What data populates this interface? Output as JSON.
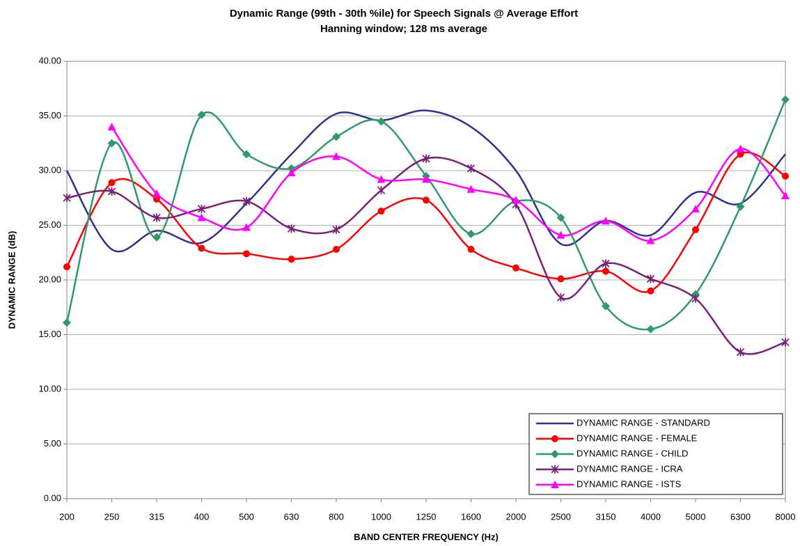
{
  "chart_data": {
    "type": "line",
    "title": "Dynamic Range (99th - 30th %ile) for Speech Signals @ Average Effort",
    "subtitle": "Hanning window; 128 ms average",
    "x_label": "BAND CENTER FREQUENCY (Hz)",
    "y_label": "DYNAMIC RANGE (dB)",
    "categories": [
      "200",
      "250",
      "315",
      "400",
      "500",
      "630",
      "800",
      "1000",
      "1250",
      "1600",
      "2000",
      "2500",
      "3150",
      "4000",
      "5000",
      "6300",
      "8000"
    ],
    "ylim": [
      0,
      40
    ],
    "yticks": [
      {
        "value": 0,
        "label": "0.00"
      },
      {
        "value": 5,
        "label": "5.00"
      },
      {
        "value": 10,
        "label": "10.00"
      },
      {
        "value": 15,
        "label": "15.00"
      },
      {
        "value": 20,
        "label": "20.00"
      },
      {
        "value": 25,
        "label": "25.00"
      },
      {
        "value": 30,
        "label": "30.00"
      },
      {
        "value": 35,
        "label": "35.00"
      },
      {
        "value": 40,
        "label": "40.00"
      }
    ],
    "grid": true,
    "smooth": true,
    "legend": "lower right",
    "series": [
      {
        "name": "DYNAMIC RANGE - STANDARD",
        "color": "#2e3192",
        "values": [
          30.0,
          22.8,
          24.5,
          23.4,
          27.0,
          31.5,
          35.2,
          34.6,
          35.5,
          34.0,
          30.0,
          23.3,
          25.4,
          24.1,
          28.0,
          27.0,
          31.5
        ]
      },
      {
        "name": "DYNAMIC RANGE - FEMALE",
        "color": "#ff0000",
        "marker": "circle",
        "values": [
          21.2,
          28.9,
          27.4,
          22.9,
          22.4,
          21.9,
          22.8,
          26.3,
          27.3,
          22.8,
          21.1,
          20.1,
          20.8,
          19.0,
          24.6,
          31.5,
          29.5
        ]
      },
      {
        "name": "DYNAMIC RANGE - CHILD",
        "color": "#2e9a6a",
        "marker": "diamond",
        "values": [
          16.1,
          32.5,
          23.9,
          35.1,
          31.5,
          30.2,
          33.1,
          34.5,
          29.5,
          24.2,
          27.2,
          25.7,
          17.6,
          15.5,
          18.7,
          26.7,
          36.5
        ]
      },
      {
        "name": "DYNAMIC RANGE - ICRA",
        "color": "#7a1f7a",
        "marker": "star",
        "values": [
          27.5,
          28.1,
          25.7,
          26.5,
          27.2,
          24.7,
          24.6,
          28.2,
          31.1,
          30.2,
          26.9,
          18.4,
          21.5,
          20.1,
          18.3,
          13.4,
          14.3
        ]
      },
      {
        "name": "DYNAMIC RANGE - ISTS",
        "color": "#ff00ff",
        "marker": "triangle",
        "values": [
          null,
          34.0,
          27.9,
          25.7,
          24.8,
          29.8,
          31.3,
          29.2,
          29.2,
          28.3,
          27.3,
          24.1,
          25.4,
          23.6,
          26.5,
          32.0,
          27.7
        ]
      }
    ]
  }
}
